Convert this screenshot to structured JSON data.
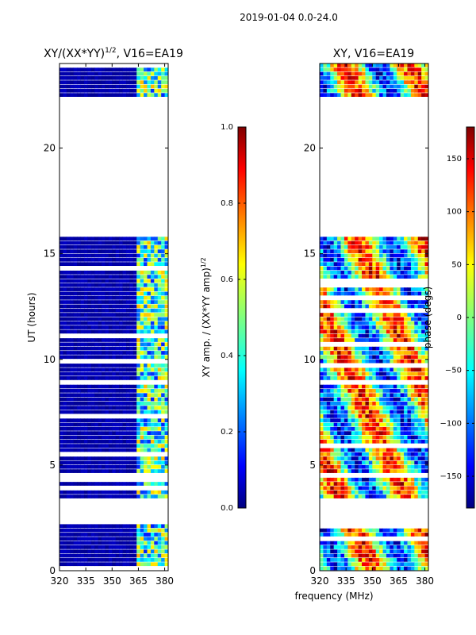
{
  "suptitle": "2019-01-04 0.0-24.0",
  "shared_xlabel": "frequency (MHz)",
  "colors": {
    "jet": [
      "#00007f",
      "#0000ff",
      "#007fff",
      "#00ffff",
      "#7fff7f",
      "#ffff00",
      "#ff7f00",
      "#ff0000",
      "#7f0000"
    ]
  },
  "chart_data": [
    {
      "type": "heatmap",
      "title": "XY/(XX*YY)",
      "title_sup": "1/2",
      "title_suffix": ", V16=EA19",
      "xlabel": "",
      "ylabel": "UT (hours)",
      "xlim": [
        320,
        382
      ],
      "ylim": [
        0,
        24
      ],
      "xticks": [
        320,
        335,
        350,
        365,
        380
      ],
      "yticks": [
        0,
        5,
        10,
        15,
        20
      ],
      "data_gaps_hours": [
        [
          2.2,
          3.4
        ],
        [
          15.9,
          22.4
        ]
      ],
      "colorbar": {
        "label": "XY amp. / (XX*YY amp)",
        "label_sup": "1/2",
        "range": [
          0.0,
          1.0
        ],
        "ticks": [
          "0.0",
          "0.2",
          "0.4",
          "0.6",
          "0.8",
          "1.0"
        ]
      }
    },
    {
      "type": "heatmap",
      "title": "XY, V16=EA19",
      "xlabel": "frequency (MHz)",
      "ylabel": "",
      "xlim": [
        320,
        382
      ],
      "ylim": [
        0,
        24
      ],
      "xticks": [
        320,
        335,
        350,
        365,
        380
      ],
      "yticks": [
        0,
        5,
        10,
        15,
        20
      ],
      "data_gaps_hours": [
        [
          2.2,
          3.4
        ],
        [
          15.9,
          22.4
        ]
      ],
      "colorbar": {
        "label": "phase (degs)",
        "range": [
          -180,
          180
        ],
        "ticks": [
          "−150",
          "−100",
          "−50",
          "0",
          "50",
          "100",
          "150"
        ]
      }
    }
  ]
}
